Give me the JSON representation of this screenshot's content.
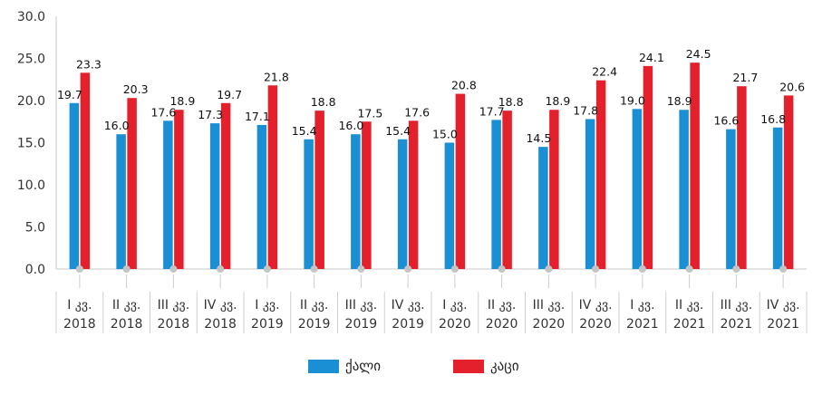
{
  "chart_data": {
    "type": "bar",
    "title": "",
    "xlabel": "",
    "ylabel": "",
    "ylim": [
      0,
      30
    ],
    "yticks": [
      "0.0",
      "5.0",
      "10.0",
      "15.0",
      "20.0",
      "25.0",
      "30.0"
    ],
    "grid": false,
    "legend_position": "bottom-center",
    "categories": [
      [
        "I კვ.",
        "2018"
      ],
      [
        "II კვ.",
        "2018"
      ],
      [
        "III კვ.",
        "2018"
      ],
      [
        "IV კვ.",
        "2018"
      ],
      [
        "I კვ.",
        "2019"
      ],
      [
        "II კვ.",
        "2019"
      ],
      [
        "III კვ.",
        "2019"
      ],
      [
        "IV კვ.",
        "2019"
      ],
      [
        "I კვ.",
        "2020"
      ],
      [
        "II კვ.",
        "2020"
      ],
      [
        "III კვ.",
        "2020"
      ],
      [
        "IV კვ.",
        "2020"
      ],
      [
        "I კვ.",
        "2021"
      ],
      [
        "II კვ.",
        "2021"
      ],
      [
        "III კვ.",
        "2021"
      ],
      [
        "IV კვ.",
        "2021"
      ]
    ],
    "series": [
      {
        "name": "ქალი",
        "color": "#1a8fd3",
        "values": [
          19.7,
          16.0,
          17.6,
          17.3,
          17.1,
          15.4,
          16.0,
          15.4,
          15.0,
          17.7,
          14.5,
          17.8,
          19.0,
          18.9,
          16.6,
          16.8
        ],
        "labels": [
          "19.7",
          "16.0",
          "17.6",
          "17.3",
          "17.1",
          "15.4",
          "16.0",
          "15.4",
          "15.0",
          "17.7",
          "14.5",
          "17.8",
          "19.0",
          "18.9",
          "16.6",
          "16.8"
        ]
      },
      {
        "name": "კაცი",
        "color": "#e3202b",
        "values": [
          23.3,
          20.3,
          18.9,
          19.7,
          21.8,
          18.8,
          17.5,
          17.6,
          20.8,
          18.8,
          18.9,
          22.4,
          24.1,
          24.5,
          21.7,
          20.6
        ],
        "labels": [
          "23.3",
          "20.3",
          "18.9",
          "19.7",
          "21.8",
          "18.8",
          "17.5",
          "17.6",
          "20.8",
          "18.8",
          "18.9",
          "22.4",
          "24.1",
          "24.5",
          "21.7",
          "20.6"
        ]
      }
    ]
  }
}
